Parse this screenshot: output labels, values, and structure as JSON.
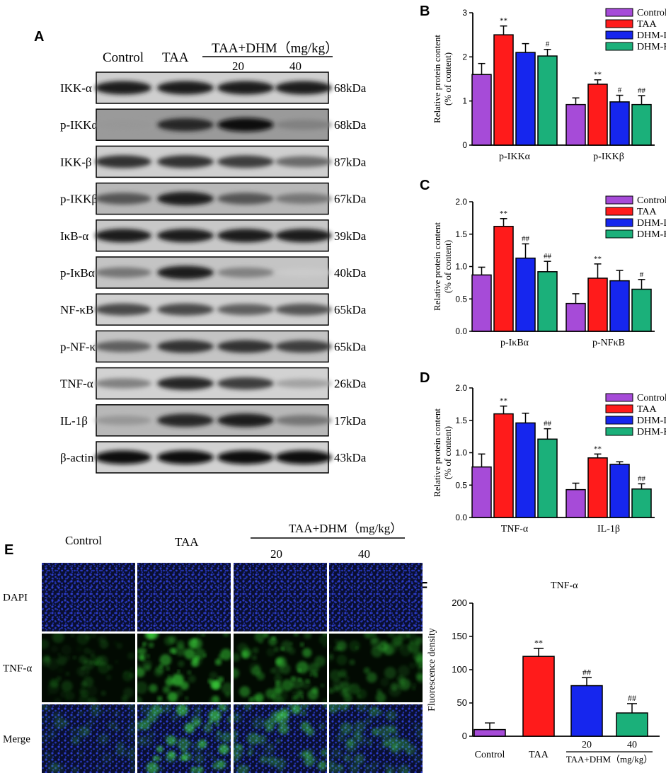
{
  "panel_labels": {
    "a": "A",
    "b": "B",
    "c": "C",
    "d": "D",
    "e": "E",
    "f": "F"
  },
  "western_blot": {
    "col_headers": {
      "control": "Control",
      "taa": "TAA",
      "group": "TAA+DHM（mg/kg）",
      "dose_low": "20",
      "dose_high": "40"
    },
    "rows": [
      {
        "label": "IKK-α",
        "kda": "68kDa",
        "intensity": [
          0.9,
          0.9,
          0.9,
          0.9
        ],
        "background": "#cfcfcf"
      },
      {
        "label": "p-IKKα",
        "kda": "68kDa",
        "intensity": [
          0.35,
          0.85,
          0.95,
          0.45
        ],
        "background": "#9a9a9a"
      },
      {
        "label": "IKK-β",
        "kda": "87kDa",
        "intensity": [
          0.8,
          0.8,
          0.75,
          0.55
        ],
        "background": "#cfcfcf"
      },
      {
        "label": "p-IKKβ",
        "kda": "67kDa",
        "intensity": [
          0.65,
          0.9,
          0.65,
          0.5
        ],
        "background": "#b8b8b8"
      },
      {
        "label": "IκB-α",
        "kda": "39kDa",
        "intensity": [
          0.9,
          0.9,
          0.9,
          0.9
        ],
        "background": "#c8c8c8"
      },
      {
        "label": "p-IκBα",
        "kda": "40kDa",
        "intensity": [
          0.5,
          0.9,
          0.45,
          0.12
        ],
        "background": "#c4c4c4"
      },
      {
        "label": "NF-κB",
        "kda": "65kDa",
        "intensity": [
          0.7,
          0.7,
          0.6,
          0.65
        ],
        "background": "#d0d0d0"
      },
      {
        "label": "p-NF-κB",
        "kda": "65kDa",
        "intensity": [
          0.6,
          0.8,
          0.8,
          0.75
        ],
        "background": "#c4c4c4"
      },
      {
        "label": "TNF-α",
        "kda": "26kDa",
        "intensity": [
          0.45,
          0.85,
          0.75,
          0.3
        ],
        "background": "#d2d2d2"
      },
      {
        "label": "IL-1β",
        "kda": "17kDa",
        "intensity": [
          0.35,
          0.85,
          0.9,
          0.5
        ],
        "background": "#b8b8b8"
      },
      {
        "label": "β-actin",
        "kda": "43kDa",
        "intensity": [
          0.95,
          0.95,
          0.95,
          0.95
        ],
        "background": "#d2d2d2"
      }
    ]
  },
  "chart_data": [
    {
      "id": "B",
      "type": "bar",
      "ylabel": "Relative protein content\n(% of content)",
      "ylim": [
        0,
        3
      ],
      "yticks": [
        "0",
        "1",
        "2",
        "3"
      ],
      "categories": [
        "p-IKKα",
        "p-IKKβ"
      ],
      "series": [
        {
          "name": "Control",
          "values": [
            1.6,
            0.92
          ],
          "errors": [
            0.25,
            0.15
          ]
        },
        {
          "name": "TAA",
          "values": [
            2.5,
            1.38
          ],
          "errors": [
            0.2,
            0.1
          ]
        },
        {
          "name": "DHM-L",
          "values": [
            2.1,
            0.98
          ],
          "errors": [
            0.2,
            0.15
          ]
        },
        {
          "name": "DHM-H",
          "values": [
            2.02,
            0.92
          ],
          "errors": [
            0.15,
            0.2
          ]
        }
      ],
      "annotations": [
        [
          "",
          "**",
          "",
          "#"
        ],
        [
          "",
          "**",
          "#",
          "##"
        ]
      ],
      "legend": "top-right"
    },
    {
      "id": "C",
      "type": "bar",
      "ylabel": "Relative protein content\n(% of content)",
      "ylim": [
        0,
        2
      ],
      "yticks": [
        "0.0",
        "0.5",
        "1.0",
        "1.5",
        "2.0"
      ],
      "categories": [
        "p-IκBα",
        "p-NFκB"
      ],
      "series": [
        {
          "name": "Control",
          "values": [
            0.87,
            0.43
          ],
          "errors": [
            0.12,
            0.15
          ]
        },
        {
          "name": "TAA",
          "values": [
            1.62,
            0.82
          ],
          "errors": [
            0.12,
            0.22
          ]
        },
        {
          "name": "DHM-L",
          "values": [
            1.13,
            0.78
          ],
          "errors": [
            0.22,
            0.16
          ]
        },
        {
          "name": "DHM-H",
          "values": [
            0.92,
            0.65
          ],
          "errors": [
            0.16,
            0.15
          ]
        }
      ],
      "annotations": [
        [
          "",
          "**",
          "##",
          "##"
        ],
        [
          "",
          "**",
          "",
          "#"
        ]
      ],
      "legend": "top-right"
    },
    {
      "id": "D",
      "type": "bar",
      "ylabel": "Relative protein content\n(% of content)",
      "ylim": [
        0,
        2
      ],
      "yticks": [
        "0.0",
        "0.5",
        "1.0",
        "1.5",
        "2.0"
      ],
      "categories": [
        "TNF-α",
        "IL-1β"
      ],
      "series": [
        {
          "name": "Control",
          "values": [
            0.78,
            0.43
          ],
          "errors": [
            0.2,
            0.1
          ]
        },
        {
          "name": "TAA",
          "values": [
            1.6,
            0.92
          ],
          "errors": [
            0.12,
            0.06
          ]
        },
        {
          "name": "DHM-L",
          "values": [
            1.46,
            0.82
          ],
          "errors": [
            0.15,
            0.04
          ]
        },
        {
          "name": "DHM-H",
          "values": [
            1.21,
            0.44
          ],
          "errors": [
            0.16,
            0.08
          ]
        }
      ],
      "annotations": [
        [
          "",
          "**",
          "",
          "##"
        ],
        [
          "",
          "**",
          "",
          "##"
        ]
      ],
      "legend": "top-right"
    },
    {
      "id": "F",
      "type": "bar",
      "title": "TNF-α",
      "ylabel": "Fluorescence density",
      "ylim": [
        0,
        200
      ],
      "yticks": [
        "0",
        "50",
        "100",
        "150",
        "200"
      ],
      "categories": [
        "Control",
        "TAA",
        "20",
        "40"
      ],
      "values": [
        10,
        120,
        76,
        35
      ],
      "errors": [
        10,
        12,
        12,
        14
      ],
      "annotations": [
        "",
        "**",
        "##",
        "##"
      ],
      "group_label": "TAA+DHM（mg/kg）"
    }
  ],
  "fluorescence": {
    "col_headers": {
      "control": "Control",
      "taa": "TAA",
      "group": "TAA+DHM（mg/kg）",
      "dose_low": "20",
      "dose_high": "40"
    },
    "row_labels": [
      "DAPI",
      "TNF-α",
      "Merge"
    ],
    "green_intensity": [
      0.25,
      0.85,
      0.65,
      0.45
    ]
  },
  "colors": {
    "Control": "#a64bd8",
    "TAA": "#ff1b1b",
    "DHM-L": "#1626ee",
    "DHM-H": "#1bb07a"
  }
}
